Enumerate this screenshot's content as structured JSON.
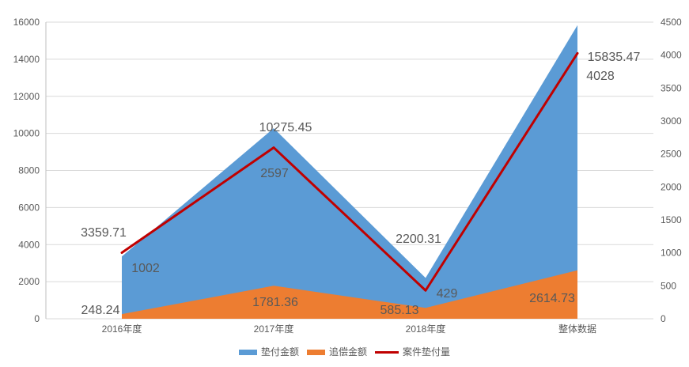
{
  "chart_data": {
    "type": "area",
    "categories": [
      "2016年度",
      "2017年度",
      "2018年度",
      "整体数据"
    ],
    "series": [
      {
        "name": "垫付金额",
        "type": "area",
        "axis": "left",
        "color": "#5B9BD5",
        "values": [
          3359.71,
          10275.45,
          2200.31,
          15835.47
        ],
        "labels": [
          "3359.71",
          "10275.45",
          "2200.31",
          "15835.47"
        ]
      },
      {
        "name": "追偿金额",
        "type": "area",
        "axis": "left",
        "color": "#ED7D31",
        "values": [
          248.24,
          1781.36,
          585.13,
          2614.73
        ],
        "labels": [
          "248.24",
          "1781.36",
          "585.13",
          "2614.73"
        ]
      },
      {
        "name": "案件垫付量",
        "type": "line",
        "axis": "right",
        "color": "#C00000",
        "values": [
          1002,
          2597,
          429,
          4028
        ],
        "labels": [
          "1002",
          "2597",
          "429",
          "4028"
        ]
      }
    ],
    "left_axis": {
      "min": 0,
      "max": 16000,
      "step": 2000,
      "ticks": [
        "0",
        "2000",
        "4000",
        "6000",
        "8000",
        "10000",
        "12000",
        "14000",
        "16000"
      ]
    },
    "right_axis": {
      "min": 0,
      "max": 4500,
      "step": 500,
      "ticks": [
        "0",
        "500",
        "1000",
        "1500",
        "2000",
        "2500",
        "3000",
        "3500",
        "4000",
        "4500"
      ]
    },
    "grid": true,
    "legend_position": "bottom"
  },
  "style": {
    "text_color": "#595959",
    "grid_color": "#D9D9D9",
    "axis_color": "#BFBFBF",
    "background": "#FFFFFF"
  }
}
